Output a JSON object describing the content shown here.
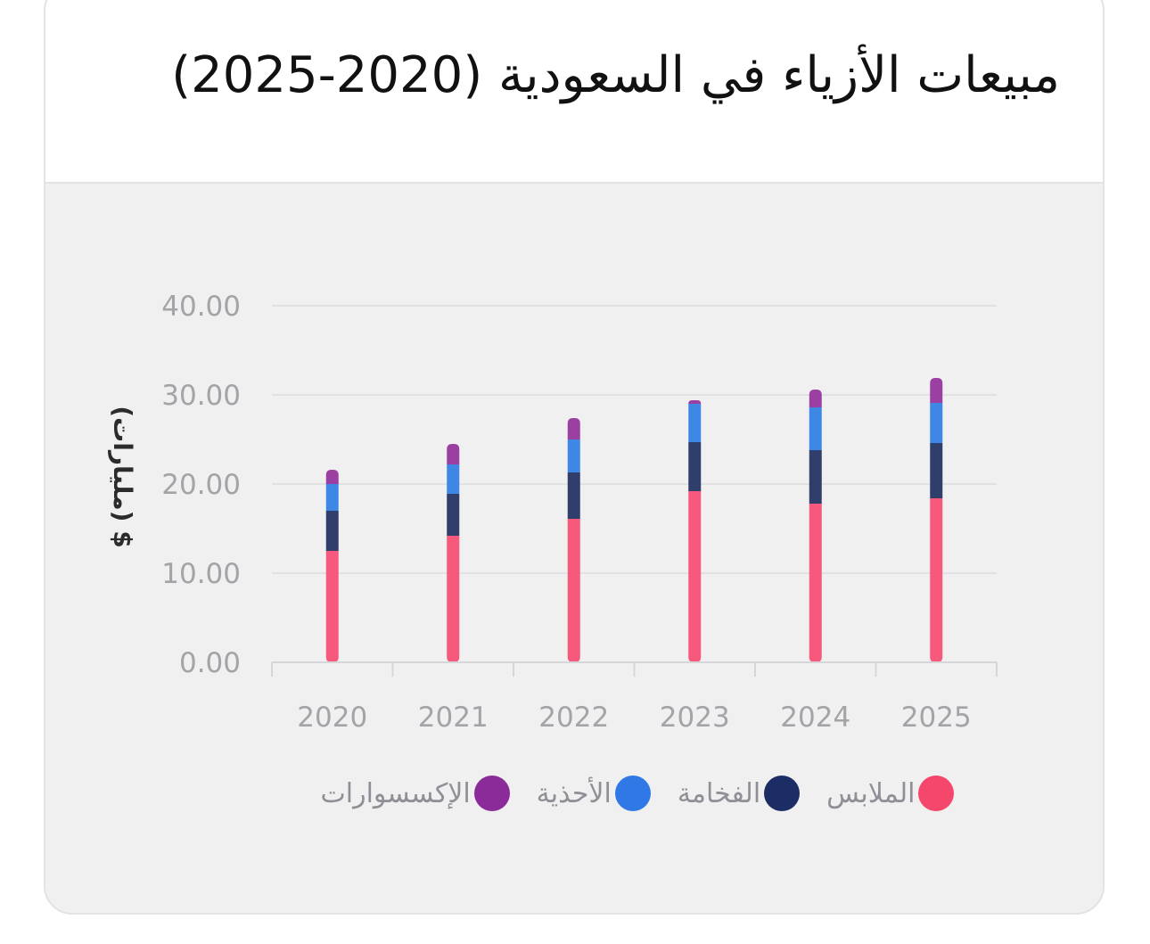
{
  "chart_data": {
    "type": "bar",
    "stacked": true,
    "title": "مبيعات الأزياء في السعودية (2020-2025)",
    "ylabel": "$ (مليارات)",
    "xlabel": "",
    "ylim": [
      0,
      40
    ],
    "yticks": [
      "0.00",
      "10.00",
      "20.00",
      "30.00",
      "40.00"
    ],
    "categories": [
      "2020",
      "2021",
      "2022",
      "2023",
      "2024",
      "2025"
    ],
    "series": [
      {
        "name": "الملابس",
        "color": "#f6597b",
        "values": [
          12.5,
          14.2,
          16.1,
          19.2,
          17.8,
          18.4
        ]
      },
      {
        "name": "الفخامة",
        "color": "#2f3e6b",
        "values": [
          4.5,
          4.7,
          5.2,
          5.5,
          6.0,
          6.2
        ]
      },
      {
        "name": "الأحذية",
        "color": "#3f87e5",
        "values": [
          3.0,
          3.3,
          3.7,
          4.3,
          4.8,
          4.5
        ]
      },
      {
        "name": "الإكسسوارات",
        "color": "#9b3fa3",
        "values": [
          1.6,
          2.3,
          2.4,
          0.4,
          2.0,
          2.8
        ]
      }
    ],
    "legend_position": "bottom",
    "grid": true
  },
  "legend_colors": {
    "الملابس": "#f5476c",
    "الفخامة": "#1b2d64",
    "الأحذية": "#2f78e6",
    "الإكسسوارات": "#8b2a99"
  }
}
